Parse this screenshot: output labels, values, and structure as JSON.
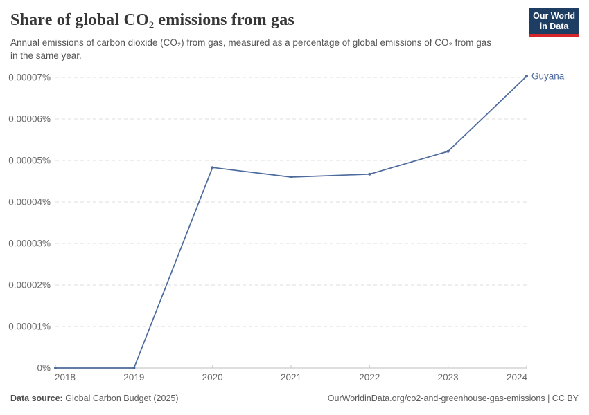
{
  "header": {
    "title": "Share of global CO₂ emissions from gas",
    "subtitle": "Annual emissions of carbon dioxide (CO₂) from gas, measured as a percentage of global emissions of CO₂ from gas in the same year.",
    "logo": {
      "line1": "Our World",
      "line2": "in Data",
      "bg_color": "#1d3d63",
      "accent_color": "#d5262c"
    }
  },
  "chart_data": {
    "type": "line",
    "title": "Share of global CO₂ emissions from gas",
    "x": [
      2018,
      2019,
      2020,
      2021,
      2022,
      2023,
      2024
    ],
    "series": [
      {
        "name": "Guyana",
        "color": "#4C6A9C",
        "values": [
          0,
          0,
          4.83e-05,
          4.6e-05,
          4.67e-05,
          5.22e-05,
          7.03e-05
        ]
      }
    ],
    "x_tick_labels": [
      "2018",
      "2019",
      "2020",
      "2021",
      "2022",
      "2023",
      "2024"
    ],
    "y_ticks": [
      {
        "value": 0,
        "label": "0%"
      },
      {
        "value": 1e-05,
        "label": "0.00001%"
      },
      {
        "value": 2e-05,
        "label": "0.00002%"
      },
      {
        "value": 3e-05,
        "label": "0.00003%"
      },
      {
        "value": 4e-05,
        "label": "0.00004%"
      },
      {
        "value": 5e-05,
        "label": "0.00005%"
      },
      {
        "value": 6e-05,
        "label": "0.00006%"
      },
      {
        "value": 7e-05,
        "label": "0.00007%"
      }
    ],
    "ylim": [
      0,
      7e-05
    ],
    "unit": "%",
    "grid": "horizontal-dashed",
    "legend_position": "end-of-line-label"
  },
  "footer": {
    "source_label": "Data source:",
    "source_value": "Global Carbon Budget (2025)",
    "link": "OurWorldinData.org/co2-and-greenhouse-gas-emissions | CC BY"
  },
  "colors": {
    "grid": "#dedede",
    "axis": "#bcbcbc",
    "tick_mark": "#c9c9c9",
    "tick_text": "#6b6b6b",
    "series": "#4C6A9C"
  }
}
